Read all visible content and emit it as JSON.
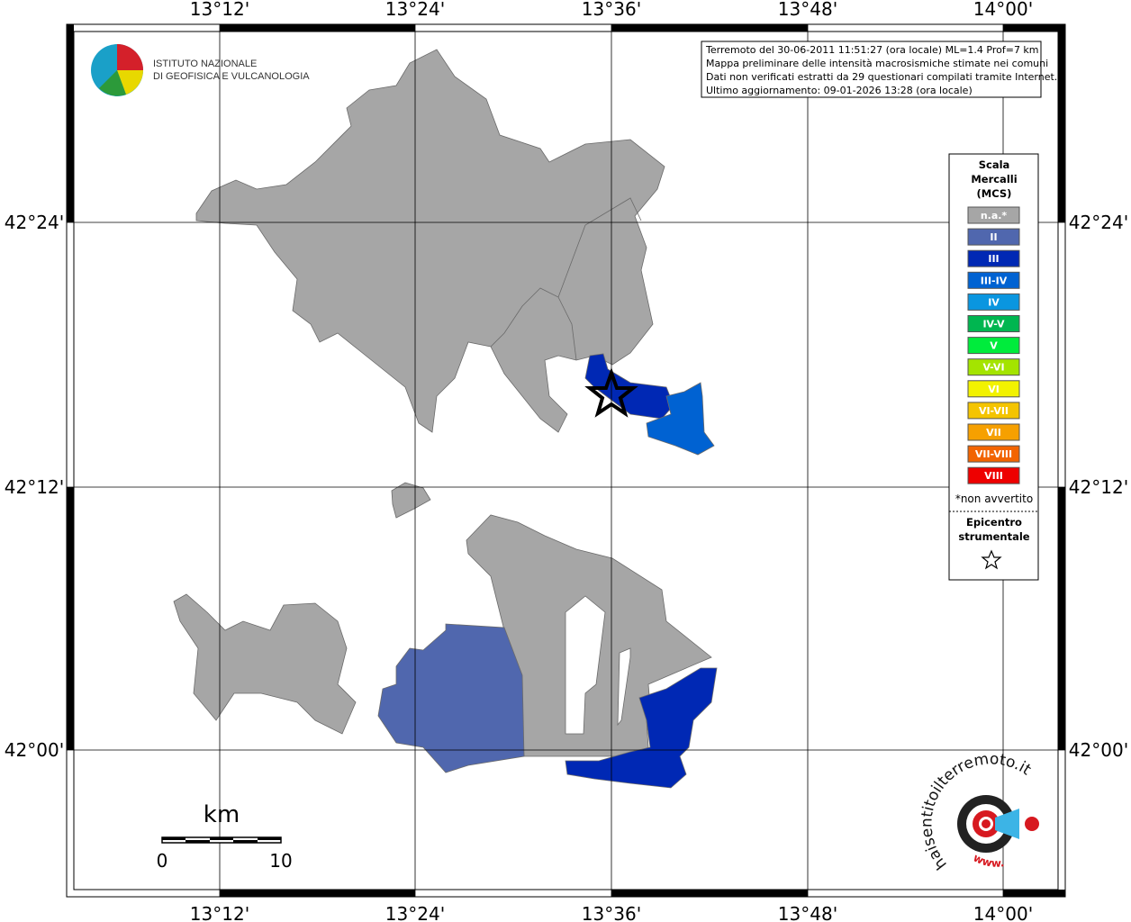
{
  "header": {
    "lines": [
      "Terremoto del 30-06-2011 11:51:27 (ora locale) ML=1.4 Prof=7 km",
      "Mappa preliminare delle intensità macrosismiche stimate nei comuni",
      "Dati non verificati estratti da 29 questionari compilati tramite Internet.",
      "Ultimo aggiornamento: 09-01-2026 13:28 (ora locale)"
    ]
  },
  "logo_ingv": {
    "line1": "ISTITUTO NAZIONALE",
    "line2": "DI GEOFISICA E VULCANOLOGIA"
  },
  "map": {
    "lon_labels": [
      "13°12'",
      "13°24'",
      "13°36'",
      "13°48'",
      "14°00'"
    ],
    "lat_labels": [
      "42°24'",
      "42°12'",
      "42°00'"
    ]
  },
  "legend": {
    "title": [
      "Scala",
      "Mercalli",
      "(MCS)"
    ],
    "items": [
      {
        "label": "n.a.*",
        "color": "#a6a6a6"
      },
      {
        "label": "II",
        "color": "#5067ae"
      },
      {
        "label": "III",
        "color": "#0028b4"
      },
      {
        "label": "III-IV",
        "color": "#0062d2"
      },
      {
        "label": "IV",
        "color": "#0a96e0"
      },
      {
        "label": "IV-V",
        "color": "#00b650"
      },
      {
        "label": "V",
        "color": "#00ec3c"
      },
      {
        "label": "V-VI",
        "color": "#a4e400"
      },
      {
        "label": "VI",
        "color": "#f2f200"
      },
      {
        "label": "VI-VII",
        "color": "#f4c400"
      },
      {
        "label": "VII",
        "color": "#f6a000"
      },
      {
        "label": "VII-VIII",
        "color": "#f26400"
      },
      {
        "label": "VIII",
        "color": "#ee0000"
      }
    ],
    "note": "*non avvertito",
    "epicenter_title": [
      "Epicentro",
      "strumentale"
    ]
  },
  "scale_bar": {
    "unit": "km",
    "labels": [
      0,
      10
    ]
  },
  "logo_hsit": {
    "text": "haisentitoilterremoto.it",
    "www": "www."
  }
}
